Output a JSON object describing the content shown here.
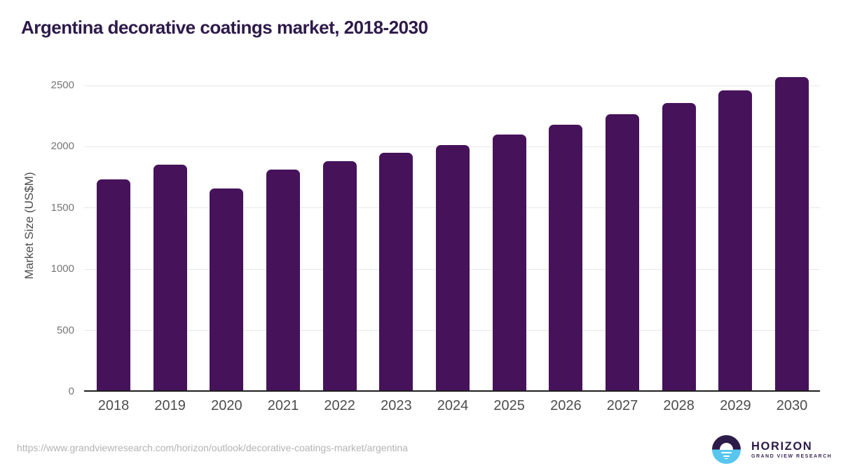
{
  "title": "Argentina decorative coatings market, 2018-2030",
  "chart_data": {
    "type": "bar",
    "categories": [
      "2018",
      "2019",
      "2020",
      "2021",
      "2022",
      "2023",
      "2024",
      "2025",
      "2026",
      "2027",
      "2028",
      "2029",
      "2030"
    ],
    "values": [
      1733,
      1852,
      1659,
      1814,
      1883,
      1950,
      2016,
      2098,
      2178,
      2265,
      2356,
      2460,
      2566
    ],
    "title": "Argentina decorative coatings market, 2018-2030",
    "xlabel": "",
    "ylabel": "Market Size (US$M)",
    "ylim": [
      0,
      2500
    ],
    "yticks": [
      0,
      500,
      1000,
      1500,
      2000,
      2500
    ],
    "grid": "horizontal",
    "legend": "none",
    "bar_color": "#46125a"
  },
  "colors": {
    "title_text": "#2e1a4a",
    "bar": "#46125a",
    "axis_line": "#1f1f1f",
    "gridline": "#e8e8e8",
    "ytick_text": "#767676",
    "xtick_text": "#4d4d4d",
    "footer_text": "#b3b3b3",
    "logo_purple": "#2d1c49",
    "logo_blue": "#58c6ee"
  },
  "footer": {
    "source_url": "https://www.grandviewresearch.com/horizon/outlook/decorative-coatings-market/argentina",
    "logo_name": "HORIZON",
    "logo_subtitle": "GRAND VIEW RESEARCH"
  }
}
